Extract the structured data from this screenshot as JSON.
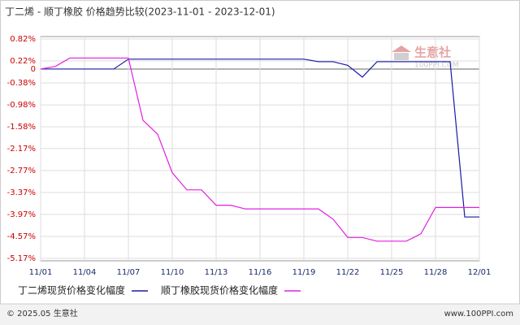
{
  "chart_data": {
    "type": "line",
    "title": "丁二烯 - 顺丁橡胶 价格趋势比较(2023-11-01 - 2023-12-01)",
    "categories": [
      "11/01",
      null,
      null,
      "11/04",
      null,
      null,
      "11/07",
      null,
      null,
      "11/10",
      null,
      null,
      "11/13",
      null,
      null,
      "11/16",
      null,
      null,
      "11/19",
      null,
      null,
      "11/22",
      null,
      null,
      "11/25",
      null,
      null,
      "11/28",
      null,
      null,
      "12/01"
    ],
    "series": [
      {
        "name": "丁二烯现货价格变化幅度",
        "color": "#1a1aa8",
        "values": [
          0,
          0,
          0,
          0,
          0,
          0,
          0.27,
          0.27,
          0.27,
          0.27,
          0.27,
          0.27,
          0.27,
          0.27,
          0.27,
          0.27,
          0.27,
          0.27,
          0.27,
          0.2,
          0.2,
          0.1,
          -0.22,
          0.2,
          0.2,
          0.2,
          0.2,
          0.2,
          0.2,
          -4.04,
          -4.04
        ]
      },
      {
        "name": "顺丁橡胶现货价格变化幅度",
        "color": "#e020e0",
        "values": [
          0,
          0.07,
          0.3,
          0.3,
          0.3,
          0.3,
          0.3,
          -1.4,
          -1.78,
          -2.83,
          -3.3,
          -3.3,
          -3.72,
          -3.72,
          -3.82,
          -3.82,
          -3.82,
          -3.82,
          -3.82,
          -3.82,
          -4.1,
          -4.6,
          -4.6,
          -4.7,
          -4.7,
          -4.7,
          -4.5,
          -3.78,
          -3.78,
          -3.78,
          -3.78
        ]
      }
    ],
    "ylim": [
      -5.17,
      0.82
    ],
    "yticks": [
      {
        "value": 0.82,
        "label": "0.82%"
      },
      {
        "value": 0.22,
        "label": "0.22%"
      },
      0,
      {
        "value": -0.38,
        "label": "-0.38%"
      },
      {
        "value": -0.98,
        "label": "-0.98%"
      },
      {
        "value": -1.58,
        "label": "-1.58%"
      },
      {
        "value": -2.17,
        "label": "-2.17%"
      },
      {
        "value": -2.77,
        "label": "-2.77%"
      },
      {
        "value": -3.37,
        "label": "-3.37%"
      },
      {
        "value": -3.97,
        "label": "-3.97%"
      },
      {
        "value": -4.57,
        "label": "-4.57%"
      },
      {
        "value": -5.17,
        "label": "-5.17%"
      }
    ],
    "grid": true,
    "watermark": {
      "brand": "生意社",
      "site": "100PPI.COM"
    },
    "footer": {
      "copyright": "© 2025.05 生意社",
      "site": "www.100PPI.com"
    }
  }
}
